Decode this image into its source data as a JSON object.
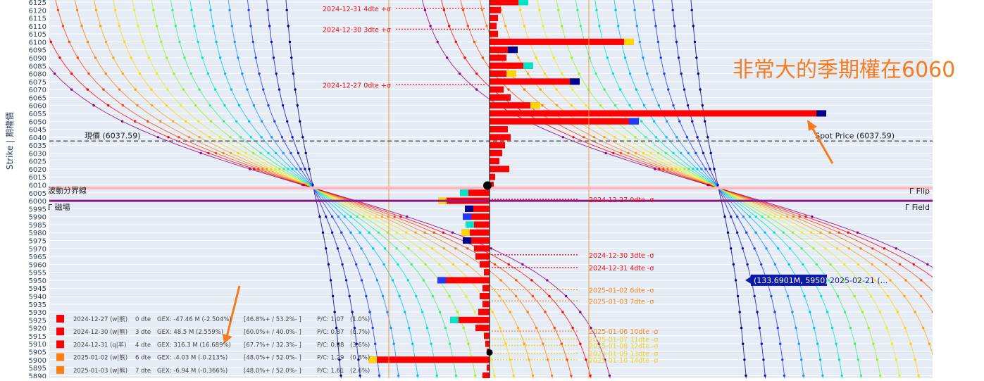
{
  "chart_data": {
    "type": "bar",
    "ylabel": "Strike | 期權價",
    "strikes": [
      6125,
      6120,
      6115,
      6110,
      6105,
      6100,
      6095,
      6090,
      6085,
      6080,
      6075,
      6070,
      6065,
      6060,
      6055,
      6050,
      6045,
      6040,
      6035,
      6030,
      6025,
      6020,
      6015,
      6010,
      6005,
      6000,
      5995,
      5990,
      5985,
      5980,
      5975,
      5970,
      5965,
      5960,
      5955,
      5950,
      5945,
      5940,
      5935,
      5930,
      5925,
      5920,
      5915,
      5910,
      5905,
      5900,
      5895,
      5890
    ],
    "spot": {
      "value": 6037.59,
      "label_left": "現價 (6037.59)",
      "label_right": "Spot Price (6037.59)"
    },
    "vol_line": {
      "value": 6008,
      "label": "波動分界線"
    },
    "gamma_flip": {
      "value": 6000,
      "label_left": "Γ 磁場",
      "label_right_top": "Γ Flip",
      "label_right_bottom": "Γ Field"
    },
    "annotation": {
      "text": "非常大的季期權在6060",
      "color": "#f47c20"
    },
    "tooltip": {
      "label": "(133.6901M, 5950)",
      "trailing": "2025-02-21 (..."
    },
    "call_bars": [
      {
        "strike": 6125,
        "v": 55
      },
      {
        "strike": 6120,
        "v": 16
      },
      {
        "strike": 6115,
        "v": 12
      },
      {
        "strike": 6110,
        "v": 10
      },
      {
        "strike": 6105,
        "v": 12
      },
      {
        "strike": 6100,
        "v": 205
      },
      {
        "strike": 6095,
        "v": 40
      },
      {
        "strike": 6090,
        "v": 24
      },
      {
        "strike": 6085,
        "v": 62
      },
      {
        "strike": 6080,
        "v": 38
      },
      {
        "strike": 6075,
        "v": 128
      },
      {
        "strike": 6070,
        "v": 20
      },
      {
        "strike": 6065,
        "v": 30
      },
      {
        "strike": 6060,
        "v": 72
      },
      {
        "strike": 6055,
        "v": 478
      },
      {
        "strike": 6050,
        "v": 212
      },
      {
        "strike": 6045,
        "v": 26
      },
      {
        "strike": 6040,
        "v": 30
      },
      {
        "strike": 6035,
        "v": 22
      },
      {
        "strike": 6030,
        "v": 18
      },
      {
        "strike": 6025,
        "v": 14
      },
      {
        "strike": 6020,
        "v": 28
      },
      {
        "strike": 6015,
        "v": 8
      },
      {
        "strike": 6010,
        "v": 6
      }
    ],
    "put_bars": [
      {
        "strike": 6005,
        "v": 42
      },
      {
        "strike": 6000,
        "v": 73
      },
      {
        "strike": 5995,
        "v": 35
      },
      {
        "strike": 5990,
        "v": 38
      },
      {
        "strike": 5985,
        "v": 34
      },
      {
        "strike": 5980,
        "v": 40
      },
      {
        "strike": 5975,
        "v": 38
      },
      {
        "strike": 5970,
        "v": 22
      },
      {
        "strike": 5965,
        "v": 20
      },
      {
        "strike": 5960,
        "v": 14
      },
      {
        "strike": 5955,
        "v": 8
      },
      {
        "strike": 5950,
        "v": 74
      },
      {
        "strike": 5945,
        "v": 10
      },
      {
        "strike": 5940,
        "v": 14
      },
      {
        "strike": 5935,
        "v": 10
      },
      {
        "strike": 5930,
        "v": 16
      },
      {
        "strike": 5925,
        "v": 56
      },
      {
        "strike": 5920,
        "v": 20
      },
      {
        "strike": 5915,
        "v": 8
      },
      {
        "strike": 5910,
        "v": 6
      },
      {
        "strike": 5905,
        "v": 4
      },
      {
        "strike": 5900,
        "v": 172
      },
      {
        "strike": 5895,
        "v": 4
      },
      {
        "strike": 5890,
        "v": 10
      }
    ],
    "sigma_labels": [
      {
        "strike": 6121,
        "text": "2024-12-31 4dte +σ",
        "side": "left",
        "color": "#ee1111"
      },
      {
        "strike": 6108,
        "text": "2024-12-30 3dte +σ",
        "side": "left",
        "color": "#ee1111"
      },
      {
        "strike": 6073,
        "text": "2024-12-27 0dte +σ",
        "side": "left",
        "color": "#ee1111"
      },
      {
        "strike": 6001,
        "text": "2024-12-27 0dte -σ",
        "side": "right",
        "color": "#ee1111"
      },
      {
        "strike": 5966,
        "text": "2024-12-30 3dte -σ",
        "side": "right",
        "color": "#ee1111"
      },
      {
        "strike": 5958,
        "text": "2024-12-31 4dte -σ",
        "side": "right",
        "color": "#ee1111"
      },
      {
        "strike": 5944,
        "text": "2025-01-02 6dte -σ",
        "side": "right",
        "color": "#f28a1a"
      },
      {
        "strike": 5937,
        "text": "2025-01-03 7dte -σ",
        "side": "right",
        "color": "#f28a1a"
      },
      {
        "strike": 5918,
        "text": "2025-01-06 10dte -σ",
        "side": "right",
        "color": "#f28a1a"
      },
      {
        "strike": 5913,
        "text": "2025-01-07 11dte -σ",
        "side": "right",
        "color": "#f2d21a"
      },
      {
        "strike": 5909,
        "text": "2025-01-08 12dte -σ",
        "side": "right",
        "color": "#f2d21a"
      },
      {
        "strike": 5904,
        "text": "2025-01-09 13dte -σ",
        "side": "right",
        "color": "#f2d21a"
      },
      {
        "strike": 5900,
        "text": "2025-01-10 14dte -σ",
        "side": "right",
        "color": "#f2d21a"
      }
    ],
    "legend": [
      {
        "color": "#ff0000",
        "date": "2024-12-27 (w|熊)",
        "dte": "0 dte",
        "gex": "GEX: -47.46 M (-2.504%)",
        "pct": "[46.8%+ / 53.2%- ]",
        "pc": "P/C: 1.07",
        "tail": "(1.0%)"
      },
      {
        "color": "#ff0000",
        "date": "2024-12-30 (w|熊)",
        "dte": "3 dte",
        "gex": "GEX: 48.5 M (2.559%)",
        "pct": "[60.0%+ / 40.0%- ]",
        "pc": "P/C: 0.87",
        "tail": "(0.7%)"
      },
      {
        "color": "#ff0000",
        "date": "2024-12-31 (q|羊)",
        "dte": "4 dte",
        "gex": "GEX: 316.3 M (16.689%)",
        "pct": "[67.7%+ / 32.3%- ]",
        "pc": "P/C: 0.88",
        "tail": "(3.6%)"
      },
      {
        "color": "#ff7f0e",
        "date": "2025-01-02 (w|熊)",
        "dte": "6 dte",
        "gex": "GEX: -4.03 M (-0.213%)",
        "pct": "[48.0%+ / 52.0%- ]",
        "pc": "P/C: 1.29",
        "tail": "(0.8%)"
      },
      {
        "color": "#ff7f0e",
        "date": "2025-01-03 (w|熊)",
        "dte": "7 dte",
        "gex": "GEX: -6.94 M (-0.366%)",
        "pct": "[48.0%+ / 52.0%- ]",
        "pc": "P/C: 1.61",
        "tail": "(2.6%)"
      }
    ],
    "colors": {
      "plot_bg": "#e5ecf6",
      "grid": "#ffffff",
      "bar": "#ff0000",
      "spot_line": "#555555",
      "gamma_line": "#8b1a8b",
      "vol_line": "#ffb6c1",
      "orange_line": "#f2a02a",
      "annotation_arrow": "#f47c20"
    }
  }
}
